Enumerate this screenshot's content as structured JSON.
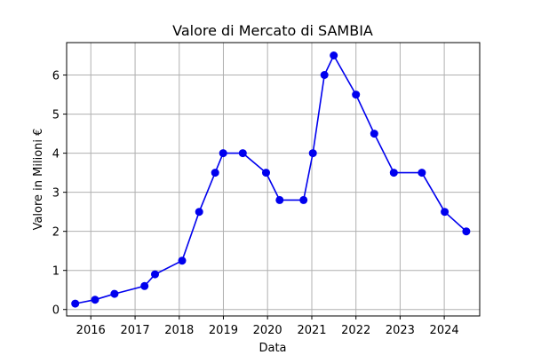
{
  "chart_data": {
    "type": "line",
    "title": "Valore di Mercato di SAMBIA",
    "xlabel": "Data",
    "ylabel": "Valore in Milioni €",
    "grid": true,
    "line_color": "#0000ee",
    "marker_color": "#0000ee",
    "xlim": [
      "2015-06-15",
      "2024-10-20"
    ],
    "ylim": [
      -0.165,
      6.83
    ],
    "x_ticks": [
      "2016",
      "2017",
      "2018",
      "2019",
      "2020",
      "2021",
      "2022",
      "2023",
      "2024"
    ],
    "y_ticks": [
      "0",
      "1",
      "2",
      "3",
      "4",
      "5",
      "6"
    ],
    "series": [
      {
        "points": [
          {
            "x": "2015-08-25",
            "y": 0.15
          },
          {
            "x": "2016-02-05",
            "y": 0.25
          },
          {
            "x": "2016-07-15",
            "y": 0.4
          },
          {
            "x": "2017-03-20",
            "y": 0.6
          },
          {
            "x": "2017-06-15",
            "y": 0.9
          },
          {
            "x": "2018-01-25",
            "y": 1.25
          },
          {
            "x": "2018-06-15",
            "y": 2.5
          },
          {
            "x": "2018-10-25",
            "y": 3.5
          },
          {
            "x": "2018-12-30",
            "y": 4.0
          },
          {
            "x": "2019-06-10",
            "y": 4.0
          },
          {
            "x": "2019-12-20",
            "y": 3.5
          },
          {
            "x": "2020-04-10",
            "y": 2.8
          },
          {
            "x": "2020-10-25",
            "y": 2.8
          },
          {
            "x": "2021-01-10",
            "y": 4.0
          },
          {
            "x": "2021-04-15",
            "y": 6.0
          },
          {
            "x": "2021-07-01",
            "y": 6.5
          },
          {
            "x": "2022-01-01",
            "y": 5.5
          },
          {
            "x": "2022-06-01",
            "y": 4.5
          },
          {
            "x": "2022-11-10",
            "y": 3.5
          },
          {
            "x": "2023-06-30",
            "y": 3.5
          },
          {
            "x": "2024-01-05",
            "y": 2.5
          },
          {
            "x": "2024-07-01",
            "y": 2.0
          }
        ]
      }
    ]
  }
}
